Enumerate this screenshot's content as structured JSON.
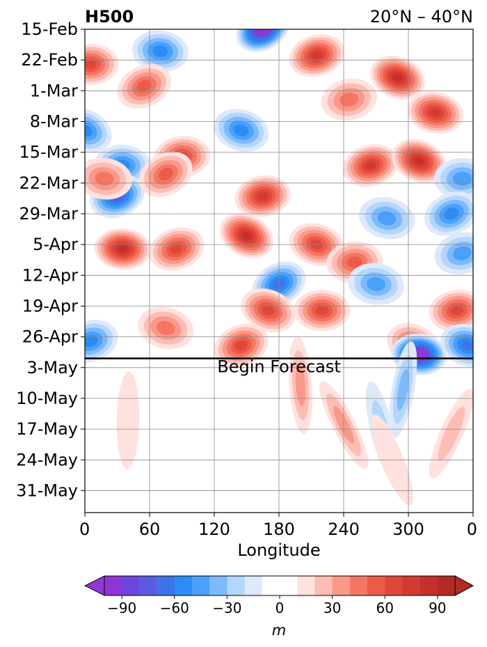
{
  "chart_data": {
    "type": "heatmap",
    "title": "H500",
    "subtitle": "20°N – 40°N",
    "xlabel": "Longitude",
    "ylabel": "",
    "x_ticks": [
      "0",
      "60",
      "120",
      "180",
      "240",
      "300",
      "0"
    ],
    "y_ticks": [
      "15-Feb",
      "22-Feb",
      "1-Mar",
      "8-Mar",
      "15-Mar",
      "22-Mar",
      "29-Mar",
      "5-Apr",
      "12-Apr",
      "19-Apr",
      "26-Apr",
      "3-May",
      "10-May",
      "17-May",
      "24-May",
      "31-May"
    ],
    "xlim": [
      0,
      360
    ],
    "time_range": [
      "15-Feb",
      "5-Jun"
    ],
    "forecast_start": "1-May",
    "annotation": "Begin Forecast",
    "grid": true,
    "colorbar": {
      "label": "m",
      "ticks": [
        "−90",
        "−60",
        "−30",
        "0",
        "30",
        "60",
        "90"
      ],
      "levels": [
        -100,
        -90,
        -80,
        -70,
        -60,
        -50,
        -40,
        -30,
        -20,
        -10,
        10,
        20,
        30,
        40,
        50,
        60,
        70,
        80,
        90,
        100
      ],
      "colors": [
        "#9035d6",
        "#6e45dc",
        "#5b5be0",
        "#3f74e8",
        "#2b8cf5",
        "#4aa0fb",
        "#7dbafc",
        "#b3d6fb",
        "#dde9fb",
        "#ffffff",
        "#ffe1de",
        "#fdbdb4",
        "#f99989",
        "#f57563",
        "#ee5a48",
        "#e1463a",
        "#d33b32",
        "#c4302c",
        "#b52a26"
      ],
      "extend": "both"
    },
    "features": [
      {
        "lon": 165,
        "date": "15-Feb",
        "value": -100
      },
      {
        "lon": 70,
        "date": "20-Feb",
        "value": -50
      },
      {
        "lon": 215,
        "date": "21-Feb",
        "value": 75
      },
      {
        "lon": 290,
        "date": "26-Feb",
        "value": 80
      },
      {
        "lon": 5,
        "date": "23-Feb",
        "value": 60
      },
      {
        "lon": 55,
        "date": "28-Feb",
        "value": 50
      },
      {
        "lon": 325,
        "date": "6-Mar",
        "value": 70
      },
      {
        "lon": 245,
        "date": "3-Mar",
        "value": 45
      },
      {
        "lon": 0,
        "date": "10-Mar",
        "value": -50
      },
      {
        "lon": 35,
        "date": "18-Mar",
        "value": -55
      },
      {
        "lon": 30,
        "date": "25-Mar",
        "value": -75
      },
      {
        "lon": 145,
        "date": "10-Mar",
        "value": -55
      },
      {
        "lon": 90,
        "date": "16-Mar",
        "value": 60
      },
      {
        "lon": 75,
        "date": "20-Mar",
        "value": 55
      },
      {
        "lon": 18,
        "date": "21-Mar",
        "value": 40
      },
      {
        "lon": 265,
        "date": "18-Mar",
        "value": 70
      },
      {
        "lon": 310,
        "date": "17-Mar",
        "value": 80
      },
      {
        "lon": 350,
        "date": "21-Mar",
        "value": -40
      },
      {
        "lon": 340,
        "date": "29-Mar",
        "value": -50
      },
      {
        "lon": 280,
        "date": "30-Mar",
        "value": -40
      },
      {
        "lon": 165,
        "date": "25-Mar",
        "value": 70
      },
      {
        "lon": 150,
        "date": "3-Apr",
        "value": 85
      },
      {
        "lon": 35,
        "date": "6-Apr",
        "value": 80
      },
      {
        "lon": 85,
        "date": "6-Apr",
        "value": 65
      },
      {
        "lon": 215,
        "date": "5-Apr",
        "value": 60
      },
      {
        "lon": 250,
        "date": "9-Apr",
        "value": 55
      },
      {
        "lon": 180,
        "date": "14-Apr",
        "value": -60
      },
      {
        "lon": 270,
        "date": "14-Apr",
        "value": -45
      },
      {
        "lon": 350,
        "date": "7-Apr",
        "value": -40
      },
      {
        "lon": 170,
        "date": "20-Apr",
        "value": 60
      },
      {
        "lon": 220,
        "date": "20-Apr",
        "value": 60
      },
      {
        "lon": 145,
        "date": "28-Apr",
        "value": 65
      },
      {
        "lon": 75,
        "date": "24-Apr",
        "value": 40
      },
      {
        "lon": 345,
        "date": "20-Apr",
        "value": 60
      },
      {
        "lon": 305,
        "date": "28-Apr",
        "value": 50
      },
      {
        "lon": 310,
        "date": "30-Apr",
        "value": -100
      },
      {
        "lon": 5,
        "date": "27-Apr",
        "value": -50
      },
      {
        "lon": 355,
        "date": "28-Apr",
        "value": -60
      },
      {
        "lon": 200,
        "date": "7-May",
        "value": 30
      },
      {
        "lon": 240,
        "date": "16-May",
        "value": 30
      },
      {
        "lon": 295,
        "date": "8-May",
        "value": -35
      },
      {
        "lon": 275,
        "date": "17-May",
        "value": -20
      },
      {
        "lon": 340,
        "date": "18-May",
        "value": 25
      },
      {
        "lon": 40,
        "date": "15-May",
        "value": 15
      },
      {
        "lon": 285,
        "date": "24-May",
        "value": 15
      }
    ]
  }
}
